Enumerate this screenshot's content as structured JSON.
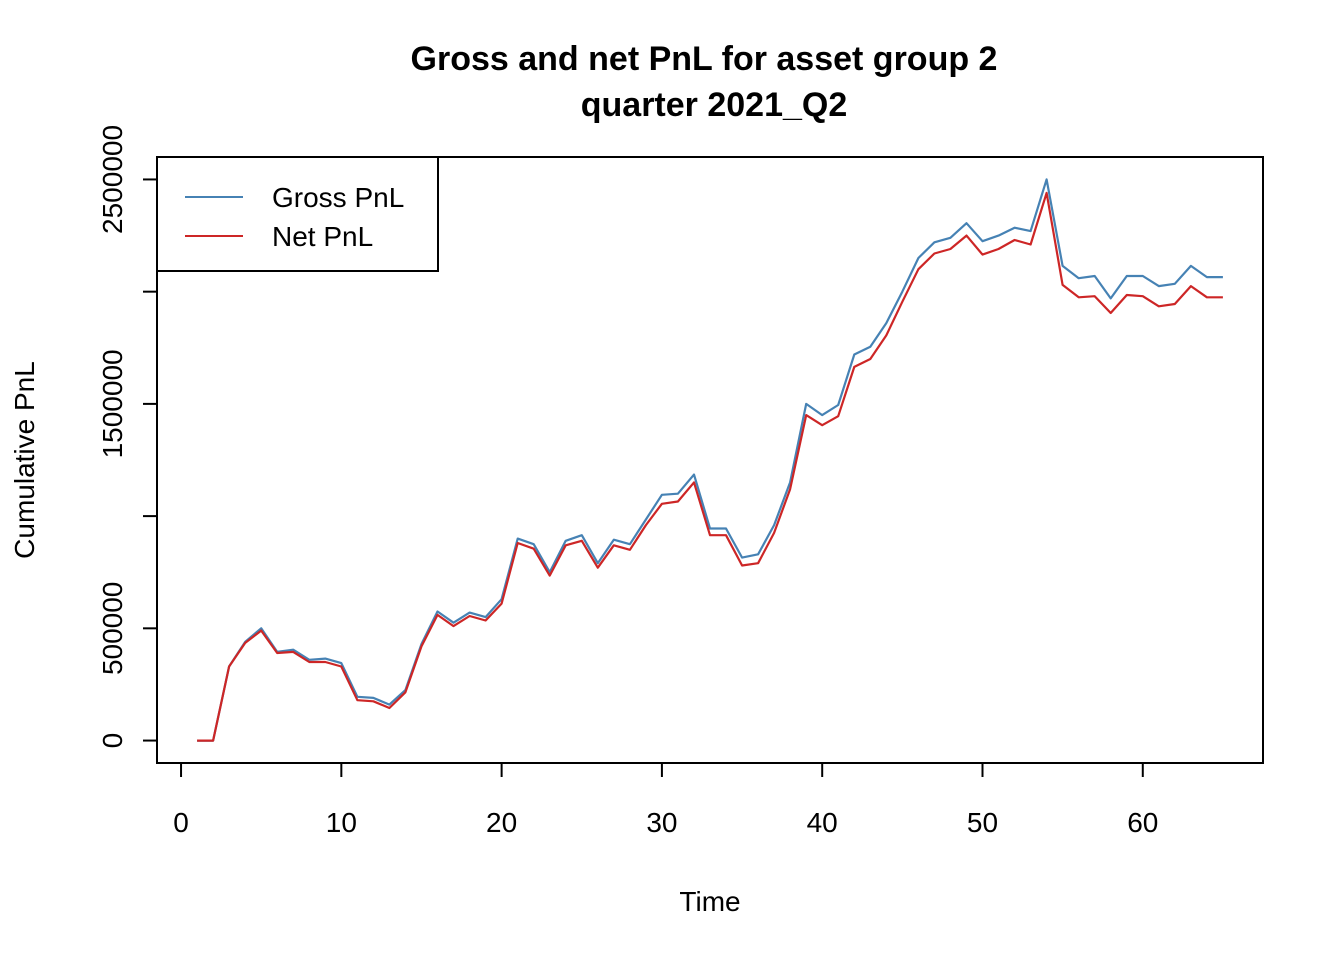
{
  "chart_data": {
    "type": "line",
    "title_line1": "Gross and net PnL for asset group 2",
    "title_line2": "quarter 2021_Q2",
    "xlabel": "Time",
    "ylabel": "Cumulative PnL",
    "xlim": [
      -1.5,
      67.5
    ],
    "ylim": [
      -100000,
      2600000
    ],
    "x_ticks": [
      0,
      10,
      20,
      30,
      40,
      50,
      60
    ],
    "x_tick_labels": [
      "0",
      "10",
      "20",
      "30",
      "40",
      "50",
      "60"
    ],
    "y_ticks": [
      0,
      500000,
      1000000,
      1500000,
      2000000,
      2500000
    ],
    "y_tick_labels": [
      "0",
      "500000",
      "",
      "1500000",
      "",
      "2500000"
    ],
    "grid": false,
    "legend_position": "top-left",
    "x": [
      1,
      2,
      3,
      4,
      5,
      6,
      7,
      8,
      9,
      10,
      11,
      12,
      13,
      14,
      15,
      16,
      17,
      18,
      19,
      20,
      21,
      22,
      23,
      24,
      25,
      26,
      27,
      28,
      29,
      30,
      31,
      32,
      33,
      34,
      35,
      36,
      37,
      38,
      39,
      40,
      41,
      42,
      43,
      44,
      45,
      46,
      47,
      48,
      49,
      50,
      51,
      52,
      53,
      54,
      55,
      56,
      57,
      58,
      59,
      60,
      61,
      62,
      63,
      64,
      65
    ],
    "series": [
      {
        "name": "Gross PnL",
        "color": "#4682B4",
        "values": [
          0,
          0,
          330000,
          440000,
          500000,
          395000,
          405000,
          360000,
          365000,
          345000,
          195000,
          190000,
          160000,
          225000,
          430000,
          575000,
          525000,
          570000,
          550000,
          630000,
          900000,
          875000,
          750000,
          890000,
          915000,
          790000,
          895000,
          875000,
          985000,
          1095000,
          1100000,
          1185000,
          945000,
          945000,
          815000,
          830000,
          960000,
          1150000,
          1500000,
          1450000,
          1495000,
          1720000,
          1755000,
          1860000,
          2000000,
          2150000,
          2220000,
          2240000,
          2305000,
          2225000,
          2250000,
          2285000,
          2270000,
          2500000,
          2115000,
          2060000,
          2070000,
          1970000,
          2070000,
          2070000,
          2025000,
          2035000,
          2115000,
          2065000,
          2065000
        ]
      },
      {
        "name": "Net PnL",
        "color": "#CD2626",
        "values": [
          0,
          0,
          330000,
          435000,
          490000,
          390000,
          395000,
          350000,
          350000,
          330000,
          180000,
          175000,
          145000,
          215000,
          420000,
          560000,
          510000,
          555000,
          535000,
          610000,
          880000,
          855000,
          735000,
          870000,
          890000,
          770000,
          870000,
          850000,
          960000,
          1055000,
          1065000,
          1150000,
          915000,
          915000,
          780000,
          790000,
          925000,
          1120000,
          1450000,
          1405000,
          1445000,
          1665000,
          1700000,
          1805000,
          1955000,
          2100000,
          2170000,
          2190000,
          2250000,
          2165000,
          2190000,
          2230000,
          2210000,
          2440000,
          2030000,
          1975000,
          1980000,
          1905000,
          1985000,
          1980000,
          1935000,
          1945000,
          2025000,
          1975000,
          1975000
        ]
      }
    ]
  }
}
